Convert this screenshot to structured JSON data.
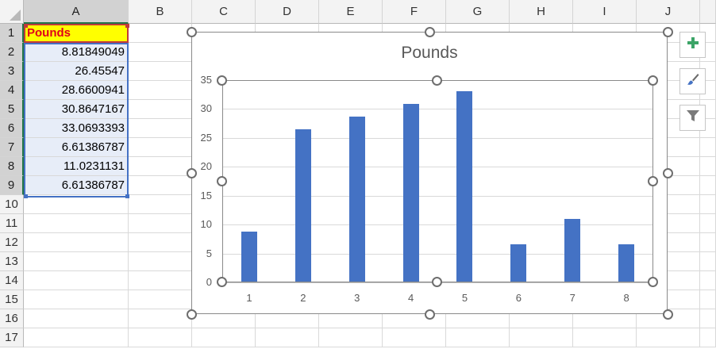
{
  "columns": [
    "A",
    "B",
    "C",
    "D",
    "E",
    "F",
    "G",
    "H",
    "I",
    "J"
  ],
  "rows": [
    "1",
    "2",
    "3",
    "4",
    "5",
    "6",
    "7",
    "8",
    "9",
    "10",
    "11",
    "12",
    "13",
    "14",
    "15",
    "16",
    "17"
  ],
  "column_a": {
    "header": "Pounds",
    "values": [
      "8.81849049",
      "26.45547",
      "28.6600941",
      "30.8647167",
      "33.0693393",
      "6.61386787",
      "11.0231131",
      "6.61386787"
    ]
  },
  "side_buttons": [
    "plus-icon",
    "brush-icon",
    "filter-icon"
  ],
  "colors": {
    "bar": "#4472c4",
    "header_fill": "#ffff00",
    "header_text": "#e0001b",
    "selection": "#4471c4"
  },
  "chart_data": {
    "type": "bar",
    "title": "Pounds",
    "categories": [
      "1",
      "2",
      "3",
      "4",
      "5",
      "6",
      "7",
      "8"
    ],
    "series": [
      {
        "values": [
          8.81849049,
          26.45547,
          28.6600941,
          30.8647167,
          33.0693393,
          6.61386787,
          11.0231131,
          6.61386787
        ]
      }
    ],
    "ylim": [
      0,
      35
    ],
    "yticks": [
      "0",
      "5",
      "10",
      "15",
      "20",
      "25",
      "30",
      "35"
    ],
    "xlabel": "",
    "ylabel": "",
    "grid": true,
    "legend": "none"
  }
}
